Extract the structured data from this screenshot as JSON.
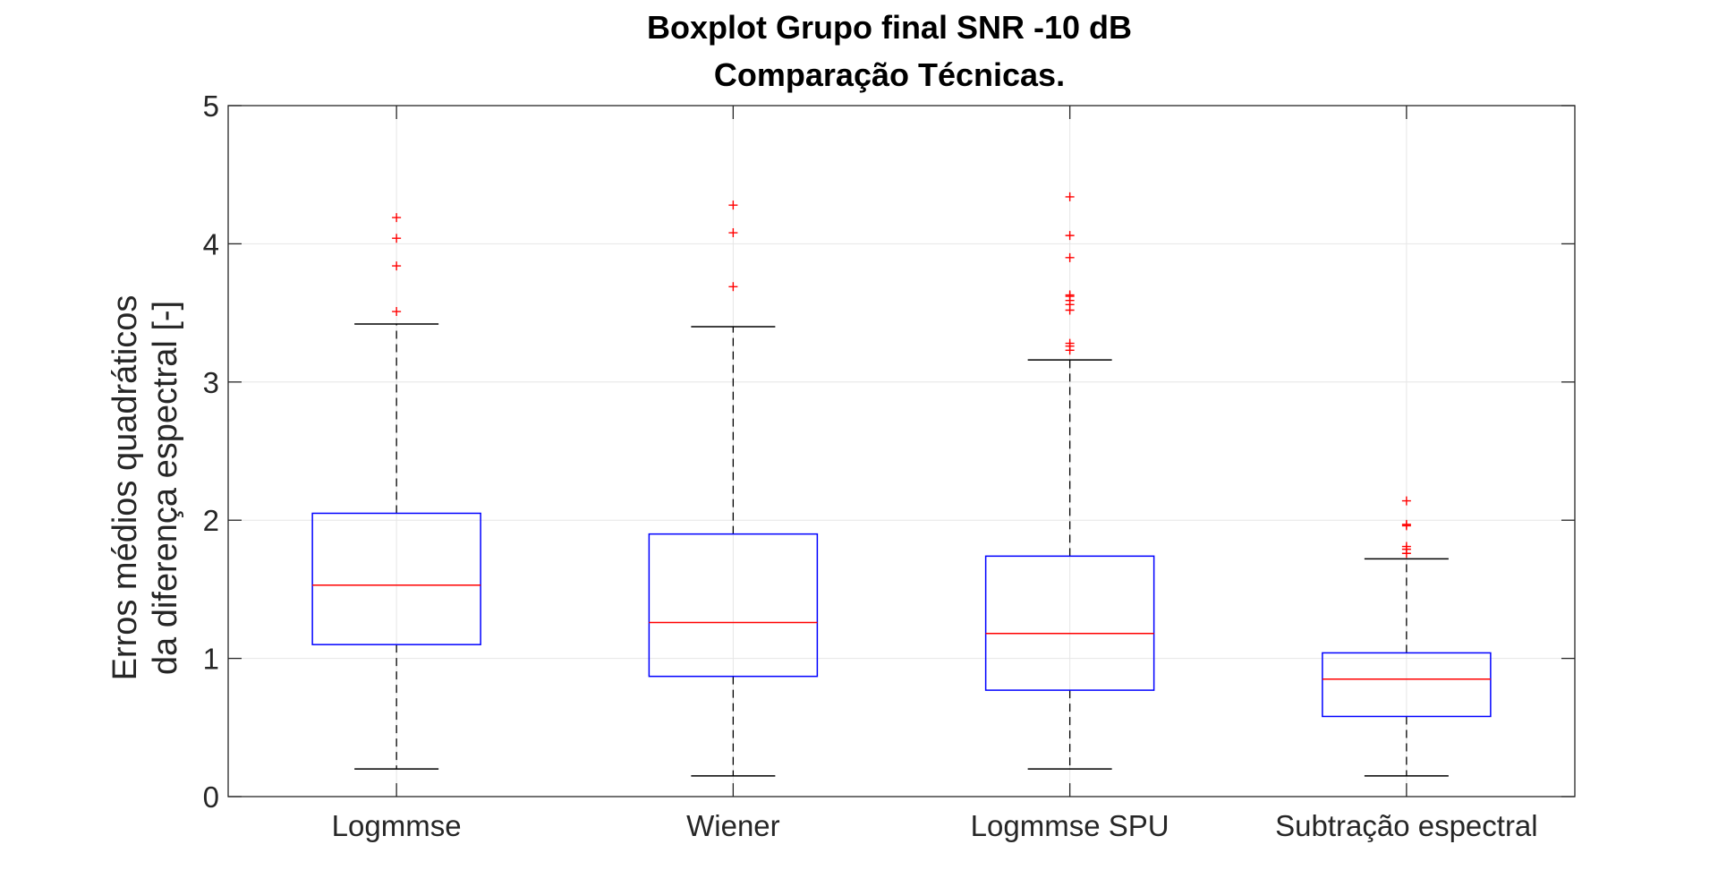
{
  "chart_data": {
    "type": "boxplot",
    "title": [
      "Boxplot Grupo final SNR -10 dB",
      "Comparação Técnicas."
    ],
    "xlabel": "",
    "ylabel": [
      "Erros médios quadráticos",
      "da diferença espectral [-]"
    ],
    "ylim": [
      0,
      5
    ],
    "yticks": [
      "0",
      "1",
      "2",
      "3",
      "4",
      "5"
    ],
    "grid": true,
    "categories": [
      "Logmmse",
      "Wiener",
      "Logmmse SPU",
      "Subtração espectral"
    ],
    "boxes": [
      {
        "whisker_low": 0.2,
        "q1": 1.1,
        "median": 1.53,
        "q3": 2.05,
        "whisker_high": 3.42,
        "outliers": [
          3.51,
          3.84,
          4.04,
          4.19
        ]
      },
      {
        "whisker_low": 0.15,
        "q1": 0.87,
        "median": 1.26,
        "q3": 1.9,
        "whisker_high": 3.4,
        "outliers": [
          3.69,
          4.08,
          4.28
        ]
      },
      {
        "whisker_low": 0.2,
        "q1": 0.77,
        "median": 1.18,
        "q3": 1.74,
        "whisker_high": 3.16,
        "outliers": [
          3.23,
          3.26,
          3.28,
          3.52,
          3.56,
          3.59,
          3.62,
          3.63,
          3.9,
          4.06,
          4.34
        ]
      },
      {
        "whisker_low": 0.15,
        "q1": 0.58,
        "median": 0.85,
        "q3": 1.04,
        "whisker_high": 1.72,
        "outliers": [
          1.76,
          1.79,
          1.81,
          1.96,
          1.97,
          2.14
        ]
      }
    ],
    "colors": {
      "box": "#0000ff",
      "median": "#ff0000",
      "outlier": "#ff0000",
      "whisker": "#000000",
      "grid": "#e6e6e6",
      "axis": "#262626"
    }
  }
}
